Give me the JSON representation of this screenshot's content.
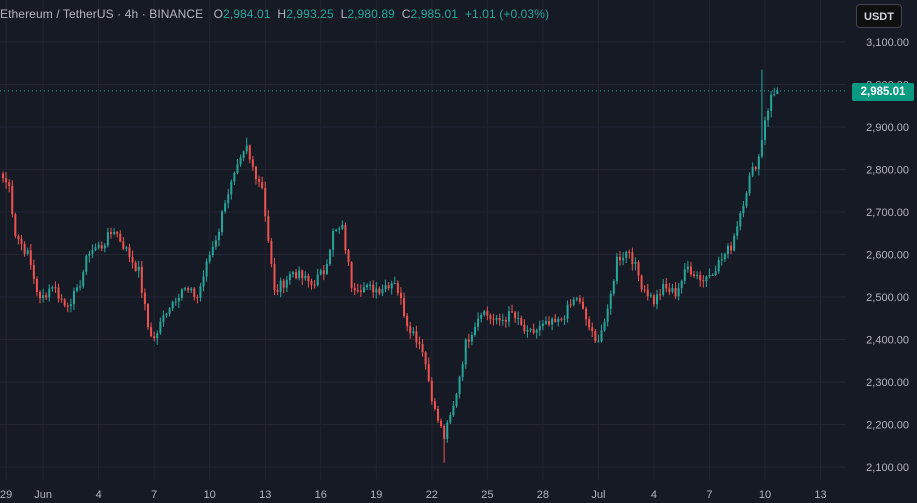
{
  "legend": {
    "symbol": "Ethereum / TetherUS",
    "interval": "4h",
    "exchange": "BINANCE",
    "open_key": "O",
    "open": "2,984.01",
    "high_key": "H",
    "high": "2,993.25",
    "low_key": "L",
    "low": "2,980.89",
    "close_key": "C",
    "close": "2,985.01",
    "change": "+1.01 (+0.03%)"
  },
  "currency_button": "USDT",
  "last_price_label": "2,985.01",
  "colors": {
    "background": "#161a25",
    "grid": "#232632",
    "up": "#26a69a",
    "down": "#ef5350",
    "text": "#b2b5be",
    "last_price": "#089981"
  },
  "chart_data": {
    "type": "candlestick",
    "ylim": [
      2080,
      3130
    ],
    "last_price": 2985.01,
    "y_ticks": [
      {
        "value": 3100,
        "label": "3,100.00"
      },
      {
        "value": 3000,
        "label": "3,000.00"
      },
      {
        "value": 2900,
        "label": "2,900.00"
      },
      {
        "value": 2800,
        "label": "2,800.00"
      },
      {
        "value": 2700,
        "label": "2,700.00"
      },
      {
        "value": 2600,
        "label": "2,600.00"
      },
      {
        "value": 2500,
        "label": "2,500.00"
      },
      {
        "value": 2400,
        "label": "2,400.00"
      },
      {
        "value": 2300,
        "label": "2,300.00"
      },
      {
        "value": 2200,
        "label": "2,200.00"
      },
      {
        "value": 2100,
        "label": "2,100.00"
      }
    ],
    "x_ticks": [
      {
        "index": 1,
        "label": "29"
      },
      {
        "index": 13,
        "label": "Jun"
      },
      {
        "index": 31,
        "label": "4"
      },
      {
        "index": 49,
        "label": "7"
      },
      {
        "index": 67,
        "label": "10"
      },
      {
        "index": 85,
        "label": "13"
      },
      {
        "index": 103,
        "label": "16"
      },
      {
        "index": 121,
        "label": "19"
      },
      {
        "index": 139,
        "label": "22"
      },
      {
        "index": 157,
        "label": "25"
      },
      {
        "index": 175,
        "label": "28"
      },
      {
        "index": 193,
        "label": "Jul"
      },
      {
        "index": 211,
        "label": "4"
      },
      {
        "index": 229,
        "label": "7"
      },
      {
        "index": 247,
        "label": "10"
      },
      {
        "index": 265,
        "label": "13"
      }
    ],
    "anchors": [
      [
        0,
        2780
      ],
      [
        2,
        2760
      ],
      [
        4,
        2650
      ],
      [
        8,
        2600
      ],
      [
        12,
        2490
      ],
      [
        16,
        2530
      ],
      [
        20,
        2480
      ],
      [
        24,
        2510
      ],
      [
        28,
        2610
      ],
      [
        32,
        2620
      ],
      [
        36,
        2660
      ],
      [
        40,
        2610
      ],
      [
        44,
        2560
      ],
      [
        47,
        2430
      ],
      [
        49,
        2400
      ],
      [
        53,
        2470
      ],
      [
        58,
        2520
      ],
      [
        63,
        2500
      ],
      [
        67,
        2600
      ],
      [
        70,
        2660
      ],
      [
        72,
        2730
      ],
      [
        76,
        2800
      ],
      [
        79,
        2850
      ],
      [
        80,
        2820
      ],
      [
        84,
        2760
      ],
      [
        88,
        2510
      ],
      [
        94,
        2560
      ],
      [
        100,
        2530
      ],
      [
        104,
        2560
      ],
      [
        107,
        2650
      ],
      [
        110,
        2660
      ],
      [
        113,
        2530
      ],
      [
        118,
        2520
      ],
      [
        122,
        2520
      ],
      [
        127,
        2540
      ],
      [
        131,
        2440
      ],
      [
        136,
        2380
      ],
      [
        140,
        2230
      ],
      [
        143,
        2170
      ],
      [
        146,
        2240
      ],
      [
        150,
        2390
      ],
      [
        155,
        2470
      ],
      [
        160,
        2440
      ],
      [
        165,
        2460
      ],
      [
        170,
        2410
      ],
      [
        175,
        2430
      ],
      [
        180,
        2440
      ],
      [
        186,
        2500
      ],
      [
        190,
        2430
      ],
      [
        192,
        2390
      ],
      [
        196,
        2460
      ],
      [
        199,
        2590
      ],
      [
        203,
        2610
      ],
      [
        207,
        2530
      ],
      [
        211,
        2490
      ],
      [
        214,
        2520
      ],
      [
        218,
        2510
      ],
      [
        222,
        2570
      ],
      [
        227,
        2540
      ],
      [
        232,
        2580
      ],
      [
        236,
        2620
      ],
      [
        239,
        2700
      ],
      [
        242,
        2780
      ],
      [
        245,
        2830
      ],
      [
        247,
        2920
      ],
      [
        249,
        2970
      ],
      [
        251,
        2985
      ]
    ],
    "ohlc_note": "4h candles, Binance ETH/USDT"
  }
}
